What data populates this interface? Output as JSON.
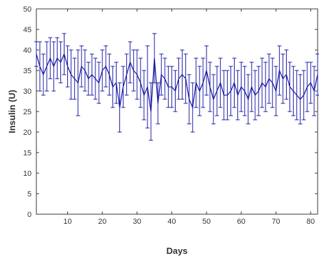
{
  "chart_data": {
    "type": "line",
    "title": "",
    "xlabel": "Days",
    "ylabel": "Insulin (U)",
    "xlim": [
      1,
      82
    ],
    "ylim": [
      0,
      50
    ],
    "x_ticks": [
      10,
      20,
      30,
      40,
      50,
      60,
      70,
      80
    ],
    "y_ticks": [
      0,
      5,
      10,
      15,
      20,
      25,
      30,
      35,
      40,
      45,
      50
    ],
    "grid": false,
    "legend": "none",
    "error_bars": true,
    "colors": {
      "line": "#1a1aa6",
      "errorbar": "#1a1aa6",
      "axes": "#333333",
      "background": "#ffffff"
    },
    "series": [
      {
        "x": [
          1,
          2,
          3,
          4,
          5,
          6,
          7,
          8,
          9,
          10,
          11,
          12,
          13,
          14,
          15,
          16,
          17,
          18,
          19,
          20,
          21,
          22,
          23,
          24,
          25,
          26,
          27,
          28,
          29,
          30,
          31,
          32,
          33,
          34,
          35,
          36,
          37,
          38,
          39,
          40,
          41,
          42,
          43,
          44,
          45,
          46,
          47,
          48,
          49,
          50,
          51,
          52,
          53,
          54,
          55,
          56,
          57,
          58,
          59,
          60,
          61,
          62,
          63,
          64,
          65,
          66,
          67,
          68,
          69,
          70,
          71,
          72,
          73,
          74,
          75,
          76,
          77,
          78,
          79,
          80,
          81,
          82
        ],
        "y": [
          39,
          36,
          34,
          36,
          38,
          36,
          38,
          37,
          39,
          36,
          34,
          33,
          32,
          36,
          35,
          33,
          34,
          33,
          32,
          35,
          36,
          34,
          31,
          32,
          26,
          31,
          34,
          37,
          35,
          34,
          32,
          29,
          31,
          25,
          38,
          27,
          34,
          33,
          31,
          31,
          30,
          33,
          34,
          33,
          28,
          26,
          32,
          30,
          32,
          35,
          31,
          28,
          30,
          32,
          29,
          29,
          30,
          32,
          29,
          31,
          30,
          28,
          31,
          29,
          30,
          32,
          31,
          33,
          32,
          30,
          35,
          33,
          34,
          31,
          30,
          29,
          28,
          29,
          31,
          32,
          30,
          34
        ],
        "err": [
          3,
          6,
          5,
          6,
          5,
          6,
          5,
          5,
          5,
          5,
          6,
          5,
          8,
          5,
          5,
          4,
          5,
          5,
          5,
          5,
          5,
          5,
          5,
          5,
          6,
          5,
          5,
          5,
          5,
          6,
          6,
          6,
          10,
          7,
          6,
          5,
          5,
          5,
          5,
          5,
          5,
          5,
          6,
          6,
          6,
          6,
          6,
          6,
          6,
          6,
          6,
          6,
          6,
          6,
          6,
          6,
          6,
          6,
          6,
          6,
          6,
          6,
          6,
          6,
          6,
          6,
          6,
          6,
          6,
          6,
          6,
          6,
          6,
          6,
          6,
          6,
          6,
          6,
          6,
          5,
          6,
          5
        ]
      }
    ]
  }
}
